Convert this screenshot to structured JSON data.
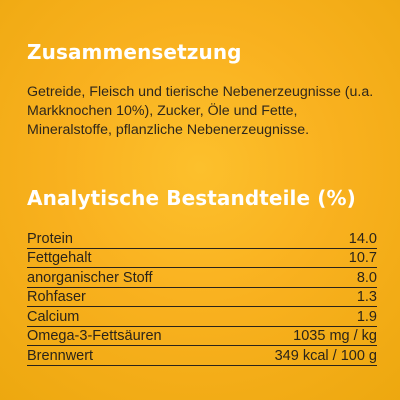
{
  "composition": {
    "title": "Zusammensetzung",
    "text": "Getreide, Fleisch und tierische Nebenerzeugnisse (u.a. Markknochen 10%), Zucker, Öle und Fette, Mineralstoffe, pflanzliche Nebenerzeugnisse."
  },
  "analysis": {
    "title": "Analytische Bestandteile (%)",
    "rows": [
      {
        "label": "Protein",
        "value": "14.0"
      },
      {
        "label": "Fettgehalt",
        "value": "10.7"
      },
      {
        "label": "anorganischer Stoff",
        "value": "8.0"
      },
      {
        "label": "Rohfaser",
        "value": "1.3"
      },
      {
        "label": "Calcium",
        "value": "1.9"
      },
      {
        "label": "Omega-3-Fettsäuren",
        "value": "1035 mg / kg"
      },
      {
        "label": "Brennwert",
        "value": "349 kcal / 100 g"
      }
    ]
  },
  "colors": {
    "background": "#f9b11f",
    "heading": "#ffffff",
    "text": "#2b2419"
  }
}
